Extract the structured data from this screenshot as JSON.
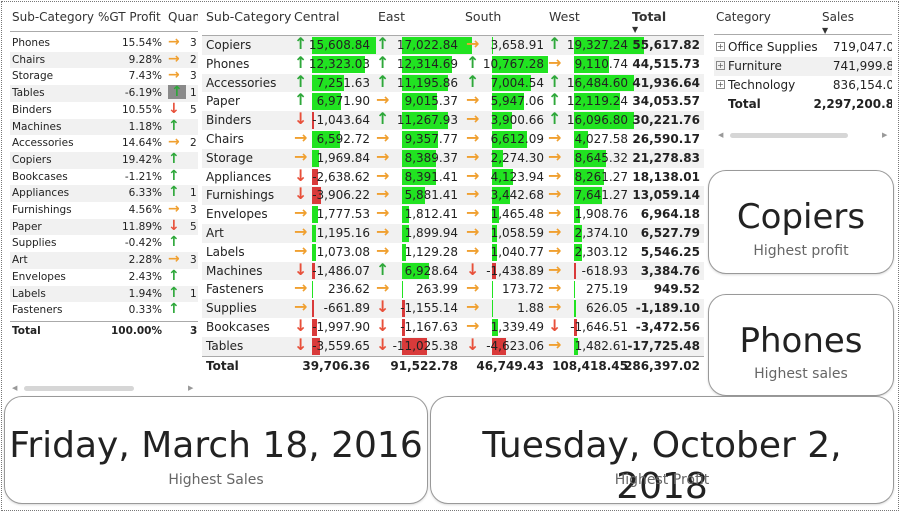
{
  "left_table": {
    "headers": [
      "Sub-Category",
      "%GT Profit",
      "Quan"
    ],
    "rows": [
      {
        "name": "Phones",
        "pct": "15.54%",
        "ic": "side",
        "q": "3"
      },
      {
        "name": "Chairs",
        "pct": "9.28%",
        "ic": "side",
        "q": "2"
      },
      {
        "name": "Storage",
        "pct": "7.43%",
        "ic": "side",
        "q": "3"
      },
      {
        "name": "Tables",
        "pct": "-6.19%",
        "ic": "up",
        "q": "1"
      },
      {
        "name": "Binders",
        "pct": "10.55%",
        "ic": "down",
        "q": "5"
      },
      {
        "name": "Machines",
        "pct": "1.18%",
        "ic": "up",
        "q": ""
      },
      {
        "name": "Accessories",
        "pct": "14.64%",
        "ic": "side",
        "q": "2"
      },
      {
        "name": "Copiers",
        "pct": "19.42%",
        "ic": "up",
        "q": ""
      },
      {
        "name": "Bookcases",
        "pct": "-1.21%",
        "ic": "up",
        "q": ""
      },
      {
        "name": "Appliances",
        "pct": "6.33%",
        "ic": "up",
        "q": "1"
      },
      {
        "name": "Furnishings",
        "pct": "4.56%",
        "ic": "side",
        "q": "3"
      },
      {
        "name": "Paper",
        "pct": "11.89%",
        "ic": "down",
        "q": "5"
      },
      {
        "name": "Supplies",
        "pct": "-0.42%",
        "ic": "up",
        "q": ""
      },
      {
        "name": "Art",
        "pct": "2.28%",
        "ic": "side",
        "q": "3"
      },
      {
        "name": "Envelopes",
        "pct": "2.43%",
        "ic": "up",
        "q": ""
      },
      {
        "name": "Labels",
        "pct": "1.94%",
        "ic": "up",
        "q": "1"
      },
      {
        "name": "Fasteners",
        "pct": "0.33%",
        "ic": "up",
        "q": ""
      }
    ],
    "total": {
      "name": "Total",
      "pct": "100.00%",
      "q": "37"
    }
  },
  "matrix": {
    "headers": [
      "Sub-Category",
      "Central",
      "East",
      "South",
      "West",
      "Total"
    ],
    "rows": [
      {
        "name": "Copiers",
        "c": [
          "up",
          "15,608.84",
          0.92
        ],
        "e": [
          "up",
          "17,022.84",
          1.0
        ],
        "s": [
          "side",
          "3,658.91",
          0.0
        ],
        "w": [
          "up",
          "19,327.24",
          1.0
        ],
        "t": "55,617.82"
      },
      {
        "name": "Phones",
        "c": [
          "up",
          "12,323.03",
          0.75
        ],
        "e": [
          "up",
          "12,314.69",
          0.72
        ],
        "s": [
          "up",
          "10,767.28",
          0.8
        ],
        "w": [
          "side",
          "9,110.74",
          0.5
        ],
        "t": "44,515.73"
      },
      {
        "name": "Accessories",
        "c": [
          "up",
          "7,251.63",
          0.45
        ],
        "e": [
          "up",
          "11,195.86",
          0.65
        ],
        "s": [
          "up",
          "7,004.54",
          0.55
        ],
        "w": [
          "up",
          "16,484.60",
          0.85
        ],
        "t": "41,936.64"
      },
      {
        "name": "Paper",
        "c": [
          "up",
          "6,971.90",
          0.42
        ],
        "e": [
          "side",
          "9,015.37",
          0.5
        ],
        "s": [
          "side",
          "5,947.06",
          0.45
        ],
        "w": [
          "up",
          "12,119.24",
          0.65
        ],
        "t": "34,053.57"
      },
      {
        "name": "Binders",
        "c": [
          "down",
          "-1,043.64",
          -0.05
        ],
        "e": [
          "up",
          "11,267.93",
          0.65
        ],
        "s": [
          "side",
          "3,900.66",
          0.28
        ],
        "w": [
          "up",
          "16,096.80",
          0.85
        ],
        "t": "30,221.76"
      },
      {
        "name": "Chairs",
        "c": [
          "side",
          "6,592.72",
          0.4
        ],
        "e": [
          "side",
          "9,357.77",
          0.52
        ],
        "s": [
          "side",
          "6,612.09",
          0.5
        ],
        "w": [
          "side",
          "4,027.58",
          0.2
        ],
        "t": "26,590.17"
      },
      {
        "name": "Storage",
        "c": [
          "side",
          "1,969.84",
          0.1
        ],
        "e": [
          "side",
          "8,389.37",
          0.48
        ],
        "s": [
          "side",
          "2,274.30",
          0.15
        ],
        "w": [
          "side",
          "8,645.32",
          0.45
        ],
        "t": "21,278.83"
      },
      {
        "name": "Appliances",
        "c": [
          "down",
          "-2,638.62",
          -0.15
        ],
        "e": [
          "side",
          "8,391.41",
          0.48
        ],
        "s": [
          "side",
          "4,123.94",
          0.3
        ],
        "w": [
          "side",
          "8,261.27",
          0.43
        ],
        "t": "18,138.01"
      },
      {
        "name": "Furnishings",
        "c": [
          "down",
          "-3,906.22",
          -0.22
        ],
        "e": [
          "side",
          "5,881.41",
          0.33
        ],
        "s": [
          "side",
          "3,442.68",
          0.25
        ],
        "w": [
          "side",
          "7,641.27",
          0.4
        ],
        "t": "13,059.14"
      },
      {
        "name": "Envelopes",
        "c": [
          "side",
          "1,777.53",
          0.09
        ],
        "e": [
          "side",
          "1,812.41",
          0.1
        ],
        "s": [
          "side",
          "1,465.48",
          0.1
        ],
        "w": [
          "side",
          "1,908.76",
          0.09
        ],
        "t": "6,964.18"
      },
      {
        "name": "Art",
        "c": [
          "side",
          "1,195.16",
          0.06
        ],
        "e": [
          "side",
          "1,899.94",
          0.1
        ],
        "s": [
          "side",
          "1,058.59",
          0.07
        ],
        "w": [
          "side",
          "2,374.10",
          0.11
        ],
        "t": "6,527.79"
      },
      {
        "name": "Labels",
        "c": [
          "side",
          "1,073.08",
          0.05
        ],
        "e": [
          "side",
          "1,129.28",
          0.06
        ],
        "s": [
          "side",
          "1,040.77",
          0.07
        ],
        "w": [
          "side",
          "2,303.12",
          0.11
        ],
        "t": "5,546.25"
      },
      {
        "name": "Machines",
        "c": [
          "down",
          "-1,486.07",
          -0.08
        ],
        "e": [
          "up",
          "6,928.64",
          0.38
        ],
        "s": [
          "down",
          "-1,438.89",
          -0.1
        ],
        "w": [
          "side",
          "-618.93",
          -0.02
        ],
        "t": "3,384.76"
      },
      {
        "name": "Fasteners",
        "c": [
          "side",
          "236.62",
          0.0
        ],
        "e": [
          "side",
          "263.99",
          0.0
        ],
        "s": [
          "side",
          "173.72",
          0.0
        ],
        "w": [
          "side",
          "275.19",
          0.0
        ],
        "t": "949.52"
      },
      {
        "name": "Supplies",
        "c": [
          "side",
          "-661.89",
          -0.03
        ],
        "e": [
          "down",
          "-1,155.14",
          -0.06
        ],
        "s": [
          "side",
          "1.88",
          0.0
        ],
        "w": [
          "side",
          "626.05",
          0.02
        ],
        "t": "-1,189.10"
      },
      {
        "name": "Bookcases",
        "c": [
          "down",
          "-1,997.90",
          -0.11
        ],
        "e": [
          "down",
          "-1,167.63",
          -0.06
        ],
        "s": [
          "side",
          "1,339.49",
          0.08
        ],
        "w": [
          "down",
          "-1,646.51",
          -0.08
        ],
        "t": "-3,472.56"
      },
      {
        "name": "Tables",
        "c": [
          "down",
          "-3,559.65",
          -0.2
        ],
        "e": [
          "down",
          "-11,025.38",
          -0.6
        ],
        "s": [
          "down",
          "-4,623.06",
          -0.33
        ],
        "w": [
          "side",
          "1,482.61",
          0.06
        ],
        "t": "-17,725.48"
      }
    ],
    "total": {
      "name": "Total",
      "c": "39,706.36",
      "e": "91,522.78",
      "s": "46,749.43",
      "w": "108,418.45",
      "t": "286,397.02"
    }
  },
  "right_table": {
    "headers": [
      "Category",
      "Sales"
    ],
    "rows": [
      {
        "name": "Office Supplies",
        "v": "719,047.0"
      },
      {
        "name": "Furniture",
        "v": "741,999.8"
      },
      {
        "name": "Technology",
        "v": "836,154.0"
      }
    ],
    "total": {
      "name": "Total",
      "v": "2,297,200.8"
    }
  },
  "cards": {
    "copiers": {
      "value": "Copiers",
      "label": "Highest profit"
    },
    "phones": {
      "value": "Phones",
      "label": "Highest sales"
    },
    "date_sales": {
      "value": "Friday, March 18, 2016",
      "label": "Highest Sales"
    },
    "date_profit": {
      "value": "Tuesday, October 2, 2018",
      "label": "Highest Profit"
    }
  },
  "colors": {
    "green_bar": "#21e321",
    "red_bar": "#d93a3a",
    "up": "#2ea83a",
    "down": "#e8503a",
    "side": "#f0a030"
  }
}
